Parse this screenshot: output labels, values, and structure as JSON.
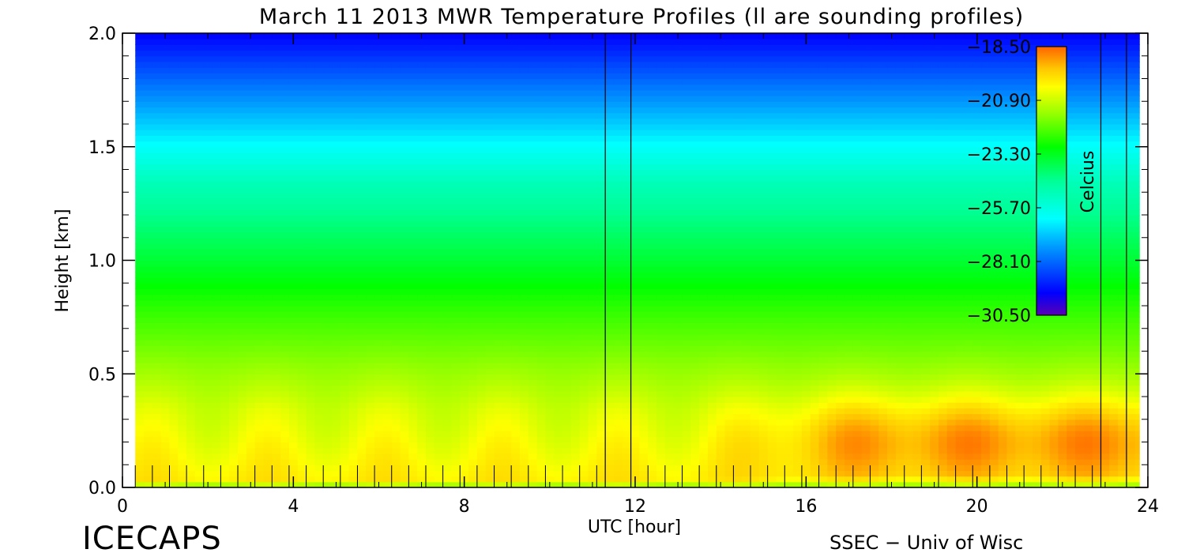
{
  "chart_data": {
    "type": "heatmap",
    "title": "March 11 2013 MWR Temperature Profiles (ll are sounding profiles)",
    "xlabel": "UTC [hour]",
    "ylabel": "Height [km]",
    "xlim": [
      0,
      24
    ],
    "ylim": [
      0,
      2.0
    ],
    "x_ticks": [
      0,
      4,
      8,
      12,
      16,
      20,
      24
    ],
    "x_tick_labels": [
      "0",
      "4",
      "8",
      "12",
      "16",
      "20",
      "24"
    ],
    "y_ticks": [
      0.0,
      0.5,
      1.0,
      1.5,
      2.0
    ],
    "y_tick_labels": [
      "0.0",
      "0.5",
      "1.0",
      "1.5",
      "2.0"
    ],
    "data_x_range": [
      0.3,
      23.8
    ],
    "sounding_profiles_utc": [
      11.3,
      11.9,
      22.9,
      23.5
    ],
    "sample_times_utc": [
      0.3,
      0.7,
      1.1,
      1.5,
      1.9,
      2.3,
      2.7,
      3.1,
      3.5,
      3.9,
      4.3,
      4.7,
      5.1,
      5.5,
      5.9,
      6.3,
      6.7,
      7.1,
      7.5,
      7.9,
      8.3,
      8.7,
      9.1,
      9.5,
      9.9,
      10.3,
      10.7,
      11.1,
      12.3,
      12.7,
      13.1,
      13.5,
      13.9,
      14.3,
      14.7,
      15.1,
      15.5,
      15.9,
      16.3,
      16.7,
      17.1,
      17.5,
      17.9,
      18.3,
      18.7,
      19.1,
      19.5,
      19.9,
      20.3,
      20.7,
      21.1,
      21.5,
      21.9,
      22.3,
      22.7
    ],
    "colorbar": {
      "label": "Celcius",
      "min": -30.5,
      "max": -18.5,
      "tick_values": [
        -18.5,
        -20.9,
        -23.3,
        -25.7,
        -28.1,
        -30.5
      ],
      "tick_labels": [
        "−18.50",
        "−20.90",
        "−23.30",
        "−25.70",
        "−28.10",
        "−30.50"
      ],
      "stops": [
        {
          "v": -30.5,
          "color": "#5a00b4"
        },
        {
          "v": -29.5,
          "color": "#0000ff"
        },
        {
          "v": -27.5,
          "color": "#0096ff"
        },
        {
          "v": -26.2,
          "color": "#00ffff"
        },
        {
          "v": -24.5,
          "color": "#00ff96"
        },
        {
          "v": -23.0,
          "color": "#00ff00"
        },
        {
          "v": -21.5,
          "color": "#96ff00"
        },
        {
          "v": -20.3,
          "color": "#ffff00"
        },
        {
          "v": -19.5,
          "color": "#ffc800"
        },
        {
          "v": -18.5,
          "color": "#ff6400"
        }
      ]
    }
  },
  "footer": {
    "brand": "ICECAPS",
    "credit": "SSEC − Univ of Wisc"
  }
}
